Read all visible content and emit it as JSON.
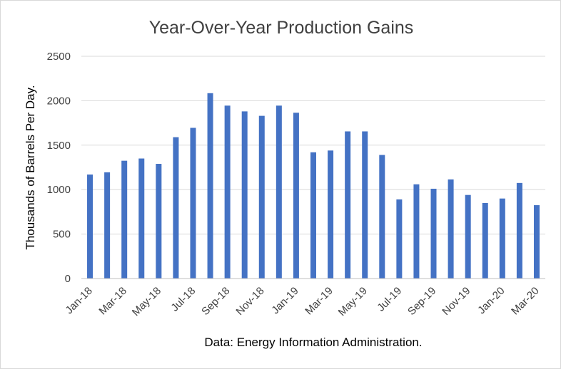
{
  "chart_data": {
    "type": "bar",
    "title": "Year-Over-Year Production Gains",
    "ylabel": "Thousands of Barrels Per Day.",
    "xlabel": "Data: Energy Information Administration.",
    "ylim": [
      0,
      2500
    ],
    "yticks": [
      0,
      500,
      1000,
      1500,
      2000,
      2500
    ],
    "grid": true,
    "legend": "none",
    "bar_color": "#4472c4",
    "categories": [
      "Jan-18",
      "Feb-18",
      "Mar-18",
      "Apr-18",
      "May-18",
      "Jun-18",
      "Jul-18",
      "Aug-18",
      "Sep-18",
      "Oct-18",
      "Nov-18",
      "Dec-18",
      "Jan-19",
      "Feb-19",
      "Mar-19",
      "Apr-19",
      "May-19",
      "Jun-19",
      "Jul-19",
      "Aug-19",
      "Sep-19",
      "Oct-19",
      "Nov-19",
      "Dec-19",
      "Jan-20",
      "Feb-20",
      "Mar-20"
    ],
    "x_tick_labels": [
      "Jan-18",
      "Mar-18",
      "May-18",
      "Jul-18",
      "Sep-18",
      "Nov-18",
      "Jan-19",
      "Mar-19",
      "May-19",
      "Jul-19",
      "Sep-19",
      "Nov-19",
      "Jan-20",
      "Mar-20"
    ],
    "values": [
      1170,
      1195,
      1325,
      1350,
      1290,
      1590,
      1695,
      2085,
      1945,
      1880,
      1830,
      1945,
      1865,
      1420,
      1440,
      1655,
      1655,
      1390,
      890,
      1060,
      1010,
      1115,
      940,
      850,
      900,
      1075,
      825
    ]
  }
}
